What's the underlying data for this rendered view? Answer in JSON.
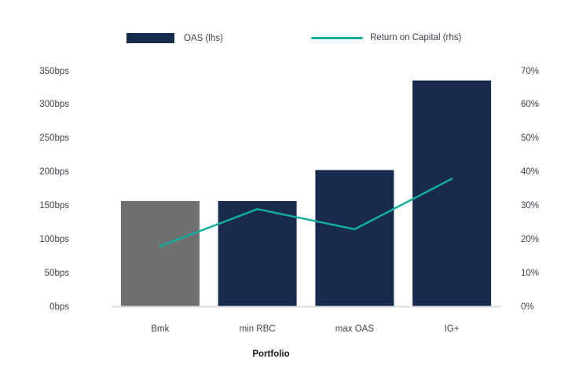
{
  "legend": {
    "bar_label": "OAS (lhs)",
    "line_label": "Return on Capital (rhs)"
  },
  "colors": {
    "navy": "#182a4e",
    "gray": "#6e7071",
    "teal": "#15ab9b",
    "axis_line": "#dcdddf",
    "text": "#3f4350"
  },
  "chart_data": {
    "type": "bar",
    "subtype": "bar+line combo, dual axis",
    "title": "",
    "categories": [
      "Bmk",
      "min RBC",
      "max OAS",
      "IG+"
    ],
    "series": [
      {
        "name": "OAS (lhs)",
        "type": "bar",
        "axis": "left",
        "unit": "bps",
        "values": [
          157,
          157,
          203,
          336
        ],
        "bar_colors": [
          "#6e7071",
          "#182a4e",
          "#182a4e",
          "#182a4e"
        ]
      },
      {
        "name": "Return on Capital (rhs)",
        "type": "line",
        "axis": "right",
        "unit": "%",
        "values": [
          18,
          29,
          23,
          38
        ],
        "color": "#15ab9b"
      }
    ],
    "xlabel": "Portfolio",
    "left_axis": {
      "ticks": [
        "0bps",
        "50bps",
        "100bps",
        "150bps",
        "200bps",
        "250bps",
        "300bps",
        "350bps"
      ],
      "min": 0,
      "max": 350
    },
    "right_axis": {
      "ticks": [
        "0%",
        "10%",
        "20%",
        "30%",
        "40%",
        "50%",
        "60%",
        "70%"
      ],
      "min": 0,
      "max": 70
    },
    "grid": false,
    "legend_position": "top"
  }
}
